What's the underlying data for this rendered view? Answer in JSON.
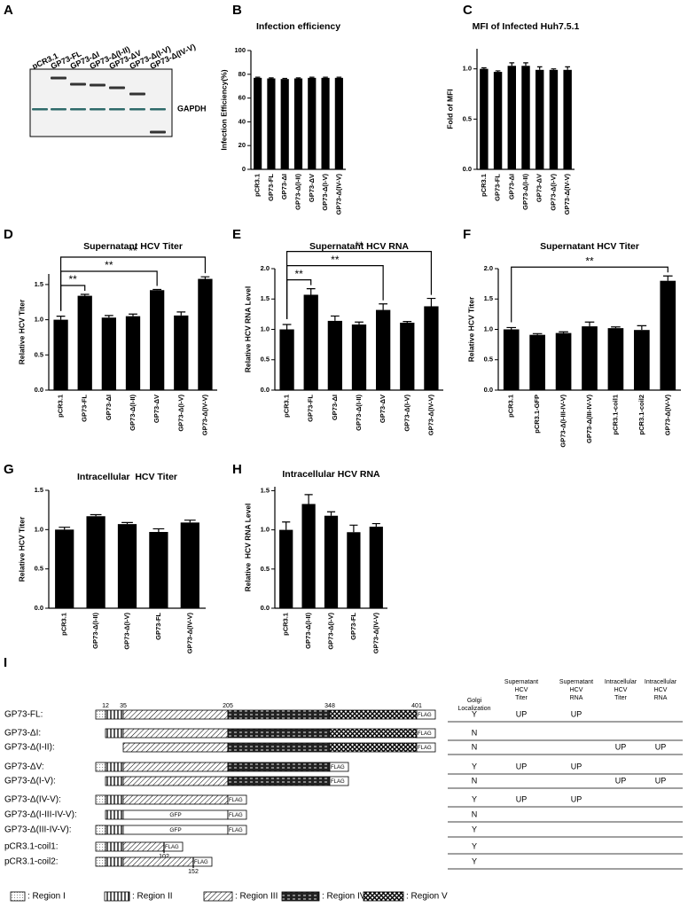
{
  "panel_labels": [
    "A",
    "B",
    "C",
    "D",
    "E",
    "F",
    "G",
    "H",
    "I"
  ],
  "blot": {
    "lanes": [
      "pCR3.1",
      "GP73-FL",
      "GP73-ΔI",
      "GP73-Δ(I-II)",
      "GP73-ΔV",
      "GP73-Δ(I-V)",
      "GP73-Δ(IV-V)"
    ],
    "marker": "GAPDH"
  },
  "chart_data": [
    {
      "type": "bar",
      "title": "Infection efficiency",
      "ylabel": "Infection Efficiency(%)",
      "color": "#000000",
      "categories": [
        "pCR3.1",
        "GP73-FL",
        "GP73-ΔI",
        "GP73-Δ(I-II)",
        "GP73-ΔV",
        "GP73-Δ(I-V)",
        "GP73-Δ(IV-V)"
      ],
      "values": [
        77,
        76.5,
        76,
        76.5,
        77,
        77,
        77
      ],
      "errors": [
        0.5,
        0.5,
        0.5,
        0.5,
        0.5,
        0.5,
        0.5
      ],
      "ylim": [
        0,
        100
      ],
      "yticks": [
        0,
        20,
        40,
        60,
        80,
        100
      ]
    },
    {
      "type": "bar",
      "title": "MFI of Infected Huh7.5.1",
      "ylabel": "Fold of MFI",
      "color": "#000000",
      "categories": [
        "pCR3.1",
        "GP73-FL",
        "GP73-ΔI",
        "GP73-Δ(I-II)",
        "GP73-ΔV",
        "GP73-Δ(I-V)",
        "GP73-Δ(IV-V)"
      ],
      "values": [
        1.0,
        0.97,
        1.03,
        1.03,
        0.99,
        0.99,
        0.99
      ],
      "errors": [
        0.01,
        0.01,
        0.03,
        0.03,
        0.03,
        0.01,
        0.03
      ],
      "ylim": [
        0,
        1.2
      ],
      "yticks": [
        {
          "value": 0,
          "label": "0.0"
        },
        0.5,
        {
          "value": 1,
          "label": "1.0"
        }
      ]
    },
    {
      "type": "bar",
      "title": "Supernatant HCV Titer",
      "ylabel": "Relative HCV Titer",
      "color": "#000000",
      "categories": [
        "pCR3.1",
        "GP73-FL",
        "GP73-ΔI",
        "GP73-Δ(I-II)",
        "GP73-ΔV",
        "GP73-Δ(I-V)",
        "GP73-Δ(IV-V)"
      ],
      "values": [
        1.0,
        1.34,
        1.03,
        1.05,
        1.42,
        1.06,
        1.58
      ],
      "errors": [
        0.05,
        0.02,
        0.03,
        0.03,
        0.01,
        0.05,
        0.03
      ],
      "ylim": [
        0,
        1.65
      ],
      "yticks": [
        {
          "value": 0,
          "label": "0.0"
        },
        0.5,
        {
          "value": 1,
          "label": "1.0"
        },
        1.5
      ],
      "brackets": [
        {
          "label": "**",
          "between": [
            "pCR3.1",
            "GP73-FL"
          ]
        },
        {
          "label": "**",
          "between": [
            "pCR3.1",
            "GP73-ΔV"
          ]
        },
        {
          "label": "**",
          "between": [
            "pCR3.1",
            "GP73-Δ(IV-V)"
          ]
        }
      ]
    },
    {
      "type": "bar",
      "title": "Supernatant HCV RNA",
      "ylabel": "Relative HCV RNA Level",
      "color": "#000000",
      "categories": [
        "pCR3.1",
        "GP73-FL",
        "GP73-ΔI",
        "GP73-Δ(I-II)",
        "GP73-ΔV",
        "GP73-Δ(I-V)",
        "GP73-Δ(IV-V)"
      ],
      "values": [
        1.0,
        1.57,
        1.14,
        1.08,
        1.32,
        1.11,
        1.38
      ],
      "errors": [
        0.08,
        0.1,
        0.08,
        0.04,
        0.1,
        0.02,
        0.13
      ],
      "ylim": [
        0,
        2
      ],
      "yticks": [
        {
          "value": 0,
          "label": "0.0"
        },
        0.5,
        {
          "value": 1,
          "label": "1.0"
        },
        1.5,
        {
          "value": 2,
          "label": "2.0"
        }
      ],
      "brackets": [
        {
          "label": "**",
          "between": [
            "pCR3.1",
            "GP73-FL"
          ]
        },
        {
          "label": "**",
          "between": [
            "pCR3.1",
            "GP73-ΔV"
          ]
        },
        {
          "label": "**",
          "between": [
            "pCR3.1",
            "GP73-Δ(IV-V)"
          ]
        }
      ]
    },
    {
      "type": "bar",
      "title": "Supernatant HCV Titer",
      "ylabel": "Relative HCV Titer",
      "color": "#000000",
      "categories": [
        "pCR3.1",
        "pCR3.1-GFP",
        "GP73-Δ(I-III-IV-V)",
        "GP73-Δ(III-IV-V)",
        "pCR3.1-coil1",
        "pCR3.1-coil2",
        "GP73-Δ(IV-V)"
      ],
      "values": [
        1.0,
        0.91,
        0.94,
        1.05,
        1.02,
        0.99,
        1.8
      ],
      "errors": [
        0.03,
        0.02,
        0.02,
        0.07,
        0.02,
        0.07,
        0.08
      ],
      "ylim": [
        0,
        2
      ],
      "yticks": [
        {
          "value": 0,
          "label": "0.0"
        },
        0.5,
        {
          "value": 1,
          "label": "1.0"
        },
        1.5,
        {
          "value": 2,
          "label": "2.0"
        }
      ],
      "brackets": [
        {
          "label": "**",
          "between": [
            "pCR3.1",
            "GP73-Δ(IV-V)"
          ]
        }
      ]
    },
    {
      "type": "bar",
      "title": "Intracellular  HCV Titer",
      "ylabel": "Relative HCV Titer",
      "color": "#000000",
      "categories": [
        "pCR3.1",
        "GP73-Δ(I-II)",
        "GP73-Δ(I-V)",
        "GP73-FL",
        "GP73-Δ(IV-V)"
      ],
      "values": [
        1.0,
        1.17,
        1.07,
        0.97,
        1.09
      ],
      "errors": [
        0.03,
        0.02,
        0.02,
        0.04,
        0.03
      ],
      "ylim": [
        0,
        1.5
      ],
      "yticks": [
        {
          "value": 0,
          "label": "0.0"
        },
        0.5,
        {
          "value": 1,
          "label": "1.0"
        },
        1.5
      ]
    },
    {
      "type": "bar",
      "title": "Intracellular HCV RNA",
      "ylabel": "Relative  HCV RNA Level",
      "color": "#000000",
      "categories": [
        "pCR3.1",
        "GP73-Δ(I-II)",
        "GP73-Δ(I-V)",
        "GP73-FL",
        "GP73-Δ(IV-V)"
      ],
      "values": [
        1.0,
        1.33,
        1.18,
        0.97,
        1.04
      ],
      "errors": [
        0.1,
        0.12,
        0.05,
        0.09,
        0.04
      ],
      "ylim": [
        0,
        1.55
      ],
      "yticks": [
        {
          "value": 0,
          "label": "0.0"
        },
        0.5,
        {
          "value": 1,
          "label": "1.0"
        },
        1.5
      ]
    }
  ],
  "diagram": {
    "residues": [
      12,
      35,
      205,
      348,
      401
    ],
    "coil_ends": [
      102,
      152
    ],
    "flag": "FLAG",
    "insert": "GFP",
    "headers": [
      [
        "Golgi",
        "Localization"
      ],
      [
        "Supernatant",
        "HCV",
        "Titer"
      ],
      [
        "Supernatant",
        "HCV",
        "RNA"
      ],
      [
        "Intracellular",
        "HCV",
        "Titer"
      ],
      [
        "Intracellular",
        "HCV",
        "RNA"
      ]
    ],
    "constructs": [
      {
        "name": "GP73-FL:",
        "cells": [
          "Y",
          "UP",
          "UP",
          null,
          null
        ]
      },
      {
        "name": "GP73-ΔI:",
        "cells": [
          "N",
          null,
          null,
          null,
          null
        ]
      },
      {
        "name": "GP73-Δ(I-II):",
        "cells": [
          "N",
          null,
          null,
          "UP",
          "UP"
        ]
      },
      {
        "name": "GP73-ΔV:",
        "cells": [
          "Y",
          "UP",
          "UP",
          null,
          null
        ]
      },
      {
        "name": "GP73-Δ(I-V):",
        "cells": [
          "N",
          null,
          null,
          "UP",
          "UP"
        ]
      },
      {
        "name": "GP73-Δ(IV-V):",
        "cells": [
          "Y",
          "UP",
          "UP",
          null,
          null
        ]
      },
      {
        "name": "GP73-Δ(I-III-IV-V):",
        "cells": [
          "N",
          null,
          null,
          null,
          null
        ]
      },
      {
        "name": "GP73-Δ(III-IV-V):",
        "cells": [
          "Y",
          null,
          null,
          null,
          null
        ]
      },
      {
        "name": "pCR3.1-coil1:",
        "cells": [
          "Y",
          null,
          null,
          null,
          null
        ]
      },
      {
        "name": "pCR3.1-coil2:",
        "cells": [
          "Y",
          null,
          null,
          null,
          null
        ]
      }
    ],
    "legend": [
      ": Region I",
      ": Region II",
      ": Region III",
      ": Region IV",
      ": Region V"
    ]
  }
}
